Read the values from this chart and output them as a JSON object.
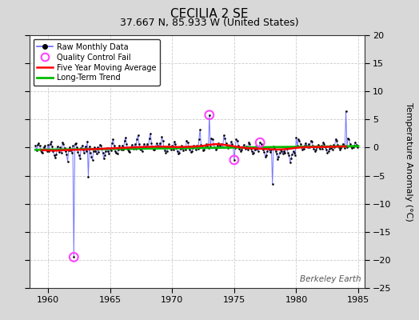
{
  "title": "CECILIA 2 SE",
  "subtitle": "37.667 N, 85.933 W (United States)",
  "ylabel": "Temperature Anomaly (°C)",
  "watermark": "Berkeley Earth",
  "xlim": [
    1958.5,
    1985.5
  ],
  "ylim": [
    -25,
    20
  ],
  "yticks": [
    -25,
    -20,
    -15,
    -10,
    -5,
    0,
    5,
    10,
    15,
    20
  ],
  "xticks": [
    1960,
    1965,
    1970,
    1975,
    1980,
    1985
  ],
  "bg_color": "#d8d8d8",
  "plot_bg_color": "#ffffff",
  "grid_color": "#cccccc",
  "raw_color": "#6666ff",
  "raw_dot_color": "#000000",
  "qc_fail_color": "#ff44ff",
  "moving_avg_color": "#ff0000",
  "trend_color": "#00bb00",
  "raw_monthly": [
    [
      1959.0,
      0.4
    ],
    [
      1959.083,
      -0.5
    ],
    [
      1959.167,
      0.5
    ],
    [
      1959.25,
      0.8
    ],
    [
      1959.333,
      0.3
    ],
    [
      1959.417,
      -0.5
    ],
    [
      1959.5,
      -0.8
    ],
    [
      1959.583,
      -0.9
    ],
    [
      1959.667,
      0.1
    ],
    [
      1959.75,
      0.3
    ],
    [
      1959.833,
      -0.4
    ],
    [
      1959.917,
      -0.6
    ],
    [
      1960.0,
      0.5
    ],
    [
      1960.083,
      -0.6
    ],
    [
      1960.167,
      0.7
    ],
    [
      1960.25,
      1.0
    ],
    [
      1960.333,
      0.2
    ],
    [
      1960.417,
      -0.7
    ],
    [
      1960.5,
      -1.3
    ],
    [
      1960.583,
      -1.8
    ],
    [
      1960.667,
      -1.2
    ],
    [
      1960.75,
      0.2
    ],
    [
      1960.833,
      -0.3
    ],
    [
      1960.917,
      -0.8
    ],
    [
      1961.0,
      0.1
    ],
    [
      1961.083,
      -0.9
    ],
    [
      1961.167,
      0.9
    ],
    [
      1961.25,
      0.6
    ],
    [
      1961.333,
      -0.1
    ],
    [
      1961.417,
      -0.6
    ],
    [
      1961.5,
      -1.2
    ],
    [
      1961.583,
      -2.5
    ],
    [
      1961.667,
      -0.5
    ],
    [
      1961.75,
      0.1
    ],
    [
      1961.833,
      -0.5
    ],
    [
      1961.917,
      -0.9
    ],
    [
      1962.0,
      0.3
    ],
    [
      1962.083,
      -19.5
    ],
    [
      1962.167,
      0.6
    ],
    [
      1962.25,
      0.8
    ],
    [
      1962.333,
      0.1
    ],
    [
      1962.417,
      -0.8
    ],
    [
      1962.5,
      -1.4
    ],
    [
      1962.583,
      -1.9
    ],
    [
      1962.667,
      -0.1
    ],
    [
      1962.75,
      0.4
    ],
    [
      1962.833,
      -0.4
    ],
    [
      1962.917,
      -1.0
    ],
    [
      1963.0,
      0.2
    ],
    [
      1963.083,
      -0.7
    ],
    [
      1963.167,
      1.1
    ],
    [
      1963.25,
      -5.2
    ],
    [
      1963.333,
      0.2
    ],
    [
      1963.417,
      -0.9
    ],
    [
      1963.5,
      -1.6
    ],
    [
      1963.583,
      -2.2
    ],
    [
      1963.667,
      -0.6
    ],
    [
      1963.75,
      0.0
    ],
    [
      1963.833,
      -0.6
    ],
    [
      1963.917,
      -1.1
    ],
    [
      1964.0,
      0.0
    ],
    [
      1964.083,
      -0.8
    ],
    [
      1964.167,
      0.5
    ],
    [
      1964.25,
      0.4
    ],
    [
      1964.333,
      -0.2
    ],
    [
      1964.417,
      -1.0
    ],
    [
      1964.5,
      -2.0
    ],
    [
      1964.583,
      -1.4
    ],
    [
      1964.667,
      -0.6
    ],
    [
      1964.75,
      -0.1
    ],
    [
      1964.833,
      -0.7
    ],
    [
      1964.917,
      -1.1
    ],
    [
      1965.0,
      -0.2
    ],
    [
      1965.083,
      -0.5
    ],
    [
      1965.167,
      0.8
    ],
    [
      1965.25,
      1.5
    ],
    [
      1965.333,
      0.3
    ],
    [
      1965.417,
      -0.7
    ],
    [
      1965.5,
      -0.9
    ],
    [
      1965.583,
      -1.1
    ],
    [
      1965.667,
      -0.3
    ],
    [
      1965.75,
      0.3
    ],
    [
      1965.833,
      -0.2
    ],
    [
      1965.917,
      -0.4
    ],
    [
      1966.0,
      0.4
    ],
    [
      1966.083,
      -0.4
    ],
    [
      1966.167,
      1.2
    ],
    [
      1966.25,
      1.8
    ],
    [
      1966.333,
      0.6
    ],
    [
      1966.417,
      -0.3
    ],
    [
      1966.5,
      -0.6
    ],
    [
      1966.583,
      -0.8
    ],
    [
      1966.667,
      -0.1
    ],
    [
      1966.75,
      0.5
    ],
    [
      1966.833,
      0.0
    ],
    [
      1966.917,
      -0.2
    ],
    [
      1967.0,
      0.6
    ],
    [
      1967.083,
      -0.2
    ],
    [
      1967.167,
      1.5
    ],
    [
      1967.25,
      2.2
    ],
    [
      1967.333,
      0.7
    ],
    [
      1967.417,
      -0.2
    ],
    [
      1967.5,
      -0.4
    ],
    [
      1967.583,
      -0.6
    ],
    [
      1967.667,
      0.1
    ],
    [
      1967.75,
      0.7
    ],
    [
      1967.833,
      0.2
    ],
    [
      1967.917,
      -0.1
    ],
    [
      1968.0,
      0.7
    ],
    [
      1968.083,
      -0.1
    ],
    [
      1968.167,
      1.7
    ],
    [
      1968.25,
      2.5
    ],
    [
      1968.333,
      0.8
    ],
    [
      1968.417,
      -0.1
    ],
    [
      1968.5,
      -0.3
    ],
    [
      1968.583,
      -0.4
    ],
    [
      1968.667,
      0.2
    ],
    [
      1968.75,
      0.8
    ],
    [
      1968.833,
      0.3
    ],
    [
      1968.917,
      0.0
    ],
    [
      1969.0,
      0.8
    ],
    [
      1969.083,
      0.0
    ],
    [
      1969.167,
      1.9
    ],
    [
      1969.25,
      1.2
    ],
    [
      1969.333,
      0.1
    ],
    [
      1969.417,
      -0.5
    ],
    [
      1969.5,
      -0.9
    ],
    [
      1969.583,
      -0.6
    ],
    [
      1969.667,
      0.0
    ],
    [
      1969.75,
      0.6
    ],
    [
      1969.833,
      0.1
    ],
    [
      1969.917,
      -0.3
    ],
    [
      1970.0,
      0.3
    ],
    [
      1970.083,
      -0.3
    ],
    [
      1970.167,
      1.0
    ],
    [
      1970.25,
      0.7
    ],
    [
      1970.333,
      -0.1
    ],
    [
      1970.417,
      -0.6
    ],
    [
      1970.5,
      -1.1
    ],
    [
      1970.583,
      -0.9
    ],
    [
      1970.667,
      -0.2
    ],
    [
      1970.75,
      0.3
    ],
    [
      1970.833,
      -0.1
    ],
    [
      1970.917,
      -0.5
    ],
    [
      1971.0,
      0.1
    ],
    [
      1971.083,
      -0.4
    ],
    [
      1971.167,
      1.2
    ],
    [
      1971.25,
      0.9
    ],
    [
      1971.333,
      0.2
    ],
    [
      1971.417,
      -0.4
    ],
    [
      1971.5,
      -0.8
    ],
    [
      1971.583,
      -0.7
    ],
    [
      1971.667,
      -0.1
    ],
    [
      1971.75,
      0.4
    ],
    [
      1971.833,
      0.0
    ],
    [
      1971.917,
      -0.4
    ],
    [
      1972.0,
      0.4
    ],
    [
      1972.083,
      -0.2
    ],
    [
      1972.167,
      1.5
    ],
    [
      1972.25,
      3.2
    ],
    [
      1972.333,
      0.5
    ],
    [
      1972.417,
      0.0
    ],
    [
      1972.5,
      -0.5
    ],
    [
      1972.583,
      -0.3
    ],
    [
      1972.667,
      0.1
    ],
    [
      1972.75,
      0.6
    ],
    [
      1972.833,
      0.2
    ],
    [
      1972.917,
      -0.1
    ],
    [
      1973.0,
      5.8
    ],
    [
      1973.083,
      0.2
    ],
    [
      1973.167,
      1.7
    ],
    [
      1973.25,
      1.5
    ],
    [
      1973.333,
      0.6
    ],
    [
      1973.417,
      0.1
    ],
    [
      1973.5,
      -0.3
    ],
    [
      1973.583,
      -0.1
    ],
    [
      1973.667,
      0.3
    ],
    [
      1973.75,
      0.8
    ],
    [
      1973.833,
      0.4
    ],
    [
      1973.917,
      0.0
    ],
    [
      1974.0,
      0.6
    ],
    [
      1974.083,
      0.1
    ],
    [
      1974.167,
      2.2
    ],
    [
      1974.25,
      1.7
    ],
    [
      1974.333,
      0.8
    ],
    [
      1974.417,
      0.3
    ],
    [
      1974.5,
      -0.1
    ],
    [
      1974.583,
      0.1
    ],
    [
      1974.667,
      0.4
    ],
    [
      1974.75,
      1.0
    ],
    [
      1974.833,
      0.6
    ],
    [
      1974.917,
      0.2
    ],
    [
      1975.0,
      -2.2
    ],
    [
      1975.083,
      -0.1
    ],
    [
      1975.167,
      1.5
    ],
    [
      1975.25,
      1.2
    ],
    [
      1975.333,
      0.3
    ],
    [
      1975.417,
      -0.2
    ],
    [
      1975.5,
      -0.6
    ],
    [
      1975.583,
      -0.4
    ],
    [
      1975.667,
      0.0
    ],
    [
      1975.75,
      0.5
    ],
    [
      1975.833,
      0.1
    ],
    [
      1975.917,
      -0.2
    ],
    [
      1976.0,
      0.2
    ],
    [
      1976.083,
      -0.3
    ],
    [
      1976.167,
      0.9
    ],
    [
      1976.25,
      0.6
    ],
    [
      1976.333,
      -0.2
    ],
    [
      1976.417,
      -0.6
    ],
    [
      1976.5,
      -1.1
    ],
    [
      1976.583,
      -0.9
    ],
    [
      1976.667,
      -0.3
    ],
    [
      1976.75,
      0.2
    ],
    [
      1976.833,
      -0.2
    ],
    [
      1976.917,
      -0.6
    ],
    [
      1977.0,
      0.1
    ],
    [
      1977.083,
      0.9
    ],
    [
      1977.167,
      0.6
    ],
    [
      1977.25,
      0.3
    ],
    [
      1977.333,
      -0.4
    ],
    [
      1977.417,
      -0.8
    ],
    [
      1977.5,
      -1.6
    ],
    [
      1977.583,
      -1.3
    ],
    [
      1977.667,
      -0.6
    ],
    [
      1977.75,
      0.0
    ],
    [
      1977.833,
      -0.3
    ],
    [
      1977.917,
      -0.8
    ],
    [
      1978.0,
      -0.3
    ],
    [
      1978.083,
      -6.5
    ],
    [
      1978.167,
      0.2
    ],
    [
      1978.25,
      -0.1
    ],
    [
      1978.333,
      -0.7
    ],
    [
      1978.417,
      -1.1
    ],
    [
      1978.5,
      -2.1
    ],
    [
      1978.583,
      -1.6
    ],
    [
      1978.667,
      -0.9
    ],
    [
      1978.75,
      -0.3
    ],
    [
      1978.833,
      -0.7
    ],
    [
      1978.917,
      -1.1
    ],
    [
      1979.0,
      -0.7
    ],
    [
      1979.083,
      -1.0
    ],
    [
      1979.167,
      0.1
    ],
    [
      1979.25,
      -0.2
    ],
    [
      1979.333,
      -0.9
    ],
    [
      1979.417,
      -1.3
    ],
    [
      1979.5,
      -2.6
    ],
    [
      1979.583,
      -1.9
    ],
    [
      1979.667,
      -1.2
    ],
    [
      1979.75,
      -0.7
    ],
    [
      1979.833,
      -1.0
    ],
    [
      1979.917,
      -1.3
    ],
    [
      1980.0,
      1.8
    ],
    [
      1980.083,
      0.3
    ],
    [
      1980.167,
      1.5
    ],
    [
      1980.25,
      1.2
    ],
    [
      1980.333,
      0.6
    ],
    [
      1980.417,
      0.1
    ],
    [
      1980.5,
      -0.4
    ],
    [
      1980.583,
      -0.2
    ],
    [
      1980.667,
      0.3
    ],
    [
      1980.75,
      0.8
    ],
    [
      1980.833,
      0.4
    ],
    [
      1980.917,
      0.0
    ],
    [
      1981.0,
      0.6
    ],
    [
      1981.083,
      0.1
    ],
    [
      1981.167,
      1.2
    ],
    [
      1981.25,
      1.0
    ],
    [
      1981.333,
      0.3
    ],
    [
      1981.417,
      -0.2
    ],
    [
      1981.5,
      -0.6
    ],
    [
      1981.583,
      -0.4
    ],
    [
      1981.667,
      0.0
    ],
    [
      1981.75,
      0.5
    ],
    [
      1981.833,
      0.1
    ],
    [
      1981.917,
      -0.2
    ],
    [
      1982.0,
      0.3
    ],
    [
      1982.083,
      -0.2
    ],
    [
      1982.167,
      0.9
    ],
    [
      1982.25,
      0.7
    ],
    [
      1982.333,
      0.0
    ],
    [
      1982.417,
      -0.4
    ],
    [
      1982.5,
      -0.9
    ],
    [
      1982.583,
      -0.7
    ],
    [
      1982.667,
      -0.2
    ],
    [
      1982.75,
      0.3
    ],
    [
      1982.833,
      -0.1
    ],
    [
      1982.917,
      -0.4
    ],
    [
      1983.0,
      0.5
    ],
    [
      1983.083,
      0.0
    ],
    [
      1983.167,
      1.5
    ],
    [
      1983.25,
      1.2
    ],
    [
      1983.333,
      0.5
    ],
    [
      1983.417,
      0.0
    ],
    [
      1983.5,
      -0.3
    ],
    [
      1983.583,
      -0.1
    ],
    [
      1983.667,
      0.2
    ],
    [
      1983.75,
      0.7
    ],
    [
      1983.833,
      0.3
    ],
    [
      1983.917,
      -0.1
    ],
    [
      1984.0,
      6.5
    ],
    [
      1984.083,
      0.1
    ],
    [
      1984.167,
      1.7
    ],
    [
      1984.25,
      1.5
    ],
    [
      1984.333,
      0.7
    ],
    [
      1984.417,
      0.2
    ],
    [
      1984.5,
      -0.1
    ],
    [
      1984.583,
      0.1
    ],
    [
      1984.667,
      0.4
    ],
    [
      1984.75,
      0.9
    ],
    [
      1984.833,
      0.5
    ],
    [
      1984.917,
      0.1
    ]
  ],
  "qc_fail_points": [
    [
      1962.083,
      -19.5
    ],
    [
      1973.0,
      5.8
    ],
    [
      1975.0,
      -2.2
    ],
    [
      1977.083,
      0.9
    ]
  ],
  "moving_avg": [
    [
      1959.5,
      -0.45
    ],
    [
      1960.0,
      -0.5
    ],
    [
      1960.5,
      -0.55
    ],
    [
      1961.0,
      -0.5
    ],
    [
      1961.5,
      -0.45
    ],
    [
      1962.0,
      -0.4
    ],
    [
      1962.5,
      -0.38
    ],
    [
      1963.0,
      -0.35
    ],
    [
      1963.5,
      -0.3
    ],
    [
      1964.0,
      -0.25
    ],
    [
      1964.5,
      -0.2
    ],
    [
      1965.0,
      -0.15
    ],
    [
      1965.5,
      -0.1
    ],
    [
      1966.0,
      -0.05
    ],
    [
      1966.5,
      0.0
    ],
    [
      1967.0,
      0.05
    ],
    [
      1967.5,
      0.1
    ],
    [
      1968.0,
      0.12
    ],
    [
      1968.5,
      0.15
    ],
    [
      1969.0,
      0.18
    ],
    [
      1969.5,
      0.15
    ],
    [
      1970.0,
      0.12
    ],
    [
      1970.5,
      0.1
    ],
    [
      1971.0,
      0.12
    ],
    [
      1971.5,
      0.15
    ],
    [
      1972.0,
      0.2
    ],
    [
      1972.5,
      0.3
    ],
    [
      1973.0,
      0.5
    ],
    [
      1973.5,
      0.6
    ],
    [
      1974.0,
      0.55
    ],
    [
      1974.5,
      0.4
    ],
    [
      1975.0,
      0.2
    ],
    [
      1975.5,
      0.05
    ],
    [
      1976.0,
      -0.1
    ],
    [
      1976.5,
      -0.15
    ],
    [
      1977.0,
      -0.2
    ],
    [
      1977.5,
      -0.25
    ],
    [
      1978.0,
      -0.3
    ],
    [
      1978.5,
      -0.35
    ],
    [
      1979.0,
      -0.3
    ],
    [
      1979.5,
      -0.2
    ],
    [
      1980.0,
      -0.05
    ],
    [
      1980.5,
      0.05
    ],
    [
      1981.0,
      0.08
    ],
    [
      1981.5,
      0.1
    ],
    [
      1982.0,
      0.12
    ],
    [
      1982.5,
      0.12
    ],
    [
      1983.0,
      0.15
    ],
    [
      1983.5,
      0.18
    ],
    [
      1984.0,
      0.2
    ]
  ],
  "trend_x": [
    1959.0,
    1985.0
  ],
  "trend_y": [
    -0.4,
    0.25
  ],
  "title_fontsize": 11,
  "subtitle_fontsize": 9,
  "tick_fontsize": 8,
  "ylabel_fontsize": 8
}
